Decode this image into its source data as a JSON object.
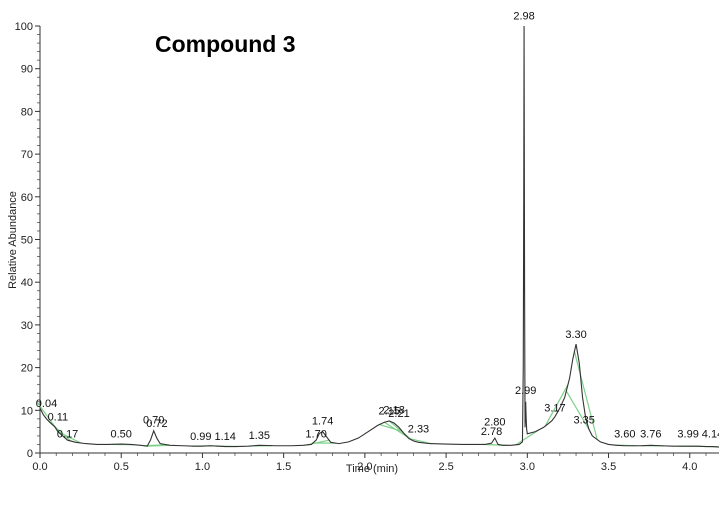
{
  "chart_data": {
    "type": "line",
    "title": "Compound 3",
    "xlabel": "Time (min)",
    "ylabel": "Relative Abundance",
    "xlim": [
      0.0,
      4.18
    ],
    "ylim": [
      0,
      100
    ],
    "x_ticks": [
      "0.0",
      "0.5",
      "1.0",
      "1.5",
      "2.0",
      "2.5",
      "3.0",
      "3.5",
      "4.0"
    ],
    "y_ticks": [
      "0",
      "10",
      "20",
      "30",
      "40",
      "50",
      "60",
      "70",
      "80",
      "90",
      "100"
    ],
    "grid": false,
    "line_color": "#333333",
    "baseline_marker_color": "#7fd08a",
    "series": [
      {
        "x": [
          0.0,
          0.02,
          0.04,
          0.06,
          0.09,
          0.11,
          0.14,
          0.17,
          0.22,
          0.28,
          0.35,
          0.42,
          0.5,
          0.56,
          0.62,
          0.66,
          0.68,
          0.7,
          0.72,
          0.74,
          0.8,
          0.88,
          0.95,
          0.99,
          1.05,
          1.1,
          1.14,
          1.2,
          1.28,
          1.35,
          1.45,
          1.55,
          1.62,
          1.67,
          1.7,
          1.72,
          1.74,
          1.76,
          1.79,
          1.84,
          1.9,
          1.96,
          2.02,
          2.08,
          2.12,
          2.15,
          2.18,
          2.21,
          2.24,
          2.27,
          2.3,
          2.33,
          2.4,
          2.5,
          2.6,
          2.7,
          2.74,
          2.78,
          2.8,
          2.82,
          2.85,
          2.9,
          2.95,
          2.97,
          2.975,
          2.978,
          2.98,
          2.983,
          2.986,
          2.99,
          2.993,
          2.996,
          3.0,
          3.05,
          3.1,
          3.15,
          3.17,
          3.2,
          3.23,
          3.26,
          3.28,
          3.3,
          3.32,
          3.34,
          3.36,
          3.38,
          3.4,
          3.45,
          3.5,
          3.55,
          3.6,
          3.65,
          3.7,
          3.76,
          3.82,
          3.9,
          3.99,
          4.05,
          4.1,
          4.14,
          4.18
        ],
        "y": [
          10.5,
          9.0,
          8.0,
          7.2,
          6.2,
          5.0,
          4.0,
          3.0,
          2.5,
          2.2,
          2.0,
          2.0,
          2.1,
          2.0,
          1.8,
          1.6,
          3.0,
          5.2,
          3.4,
          2.2,
          1.8,
          1.7,
          1.6,
          1.6,
          1.7,
          1.6,
          1.5,
          1.5,
          1.6,
          1.8,
          1.7,
          1.7,
          1.8,
          2.0,
          3.0,
          4.6,
          5.0,
          4.0,
          2.5,
          2.2,
          2.6,
          3.5,
          5.0,
          6.5,
          7.2,
          7.5,
          7.0,
          6.0,
          4.6,
          3.4,
          2.8,
          2.5,
          2.2,
          2.1,
          2.0,
          2.0,
          2.0,
          2.3,
          3.5,
          2.0,
          1.8,
          1.8,
          2.0,
          2.6,
          20.0,
          60.0,
          100.0,
          40.0,
          6.0,
          12.0,
          8.0,
          5.5,
          4.5,
          5.0,
          6.0,
          7.5,
          8.5,
          10.5,
          13.0,
          17.5,
          22.0,
          25.5,
          21.0,
          13.0,
          8.0,
          5.5,
          4.0,
          2.6,
          2.0,
          1.8,
          1.7,
          1.7,
          1.7,
          1.8,
          1.7,
          1.6,
          1.6,
          1.6,
          1.5,
          1.5,
          1.4
        ]
      }
    ],
    "peak_labels": [
      {
        "text": "0.04",
        "x": 0.04,
        "y": 10.3
      },
      {
        "text": "0.11",
        "x": 0.11,
        "y": 7.2
      },
      {
        "text": "0.17",
        "x": 0.17,
        "y": 3.2
      },
      {
        "text": "0.50",
        "x": 0.5,
        "y": 3.2
      },
      {
        "text": "0.70",
        "x": 0.7,
        "y": 6.4
      },
      {
        "text": "0.72",
        "x": 0.72,
        "y": 5.6
      },
      {
        "text": "0.99",
        "x": 0.99,
        "y": 2.6
      },
      {
        "text": "1.14",
        "x": 1.14,
        "y": 2.6
      },
      {
        "text": "1.35",
        "x": 1.35,
        "y": 2.8
      },
      {
        "text": "1.70",
        "x": 1.7,
        "y": 3.2
      },
      {
        "text": "1.74",
        "x": 1.74,
        "y": 6.2
      },
      {
        "text": "2.15",
        "x": 2.15,
        "y": 8.5
      },
      {
        "text": "2.18",
        "x": 2.18,
        "y": 8.8
      },
      {
        "text": "2.21",
        "x": 2.21,
        "y": 8.0
      },
      {
        "text": "2.33",
        "x": 2.33,
        "y": 4.3
      },
      {
        "text": "2.78",
        "x": 2.78,
        "y": 3.8
      },
      {
        "text": "2.80",
        "x": 2.8,
        "y": 6.0
      },
      {
        "text": "2.98",
        "x": 2.98,
        "y": 101.0
      },
      {
        "text": "2.99",
        "x": 2.99,
        "y": 13.3
      },
      {
        "text": "3.17",
        "x": 3.17,
        "y": 9.2
      },
      {
        "text": "3.30",
        "x": 3.3,
        "y": 26.5
      },
      {
        "text": "3.35",
        "x": 3.35,
        "y": 6.4
      },
      {
        "text": "3.60",
        "x": 3.6,
        "y": 3.2
      },
      {
        "text": "3.76",
        "x": 3.76,
        "y": 3.2
      },
      {
        "text": "3.99",
        "x": 3.99,
        "y": 3.2
      },
      {
        "text": "4.14",
        "x": 4.14,
        "y": 3.2
      }
    ]
  }
}
